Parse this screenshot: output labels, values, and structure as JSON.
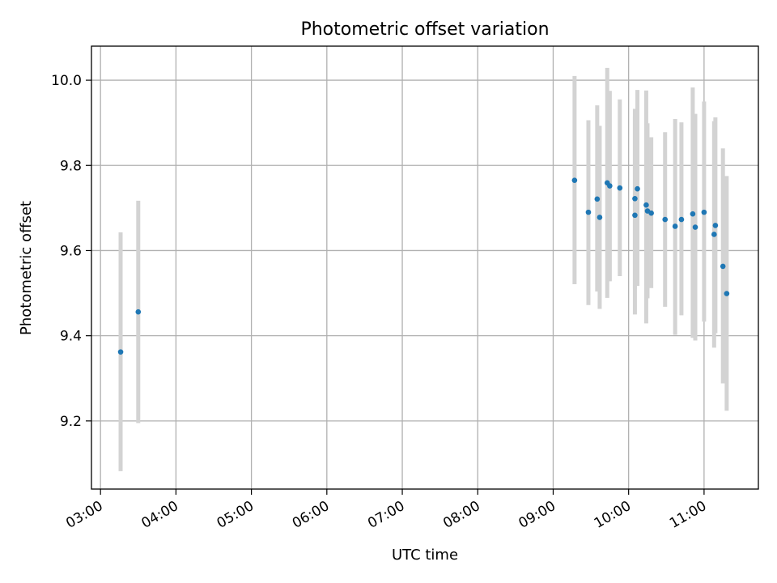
{
  "chart_data": {
    "type": "scatter",
    "title": "Photometric offset variation",
    "xlabel": "UTC time",
    "ylabel": "Photometric offset",
    "x_unit": "hours UTC",
    "xlim": [
      2.88,
      11.72
    ],
    "ylim": [
      9.04,
      10.08
    ],
    "x_ticks": [
      3,
      4,
      5,
      6,
      7,
      8,
      9,
      10,
      11
    ],
    "x_tick_labels": [
      "03:00",
      "04:00",
      "05:00",
      "06:00",
      "07:00",
      "08:00",
      "09:00",
      "10:00",
      "11:00"
    ],
    "y_ticks": [
      9.2,
      9.4,
      9.6,
      9.8,
      10.0
    ],
    "y_tick_labels": [
      "9.2",
      "9.4",
      "9.6",
      "9.8",
      "10.0"
    ],
    "grid": true,
    "legend": "none",
    "colors": {
      "points": "#1f77b4",
      "errorbars": "#d3d3d3",
      "grid": "#b0b0b0"
    },
    "points": [
      {
        "time": "03:16",
        "y": 9.362,
        "y_low": 9.082,
        "y_high": 9.643
      },
      {
        "time": "03:30",
        "y": 9.456,
        "y_low": 9.195,
        "y_high": 9.717
      },
      {
        "time": "09:17",
        "y": 9.765,
        "y_low": 9.521,
        "y_high": 10.01
      },
      {
        "time": "09:28",
        "y": 9.69,
        "y_low": 9.472,
        "y_high": 9.906
      },
      {
        "time": "09:35",
        "y": 9.721,
        "y_low": 9.504,
        "y_high": 9.941
      },
      {
        "time": "09:37",
        "y": 9.678,
        "y_low": 9.463,
        "y_high": 9.893
      },
      {
        "time": "09:43",
        "y": 9.759,
        "y_low": 9.489,
        "y_high": 10.029
      },
      {
        "time": "09:45",
        "y": 9.752,
        "y_low": 9.528,
        "y_high": 9.975
      },
      {
        "time": "09:53",
        "y": 9.747,
        "y_low": 9.54,
        "y_high": 9.955
      },
      {
        "time": "10:05",
        "y": 9.722,
        "y_low": 9.51,
        "y_high": 9.933
      },
      {
        "time": "10:05",
        "y": 9.683,
        "y_low": 9.45,
        "y_high": 9.915
      },
      {
        "time": "10:07",
        "y": 9.745,
        "y_low": 9.517,
        "y_high": 9.977
      },
      {
        "time": "10:14",
        "y": 9.707,
        "y_low": 9.429,
        "y_high": 9.976
      },
      {
        "time": "10:15",
        "y": 9.693,
        "y_low": 9.488,
        "y_high": 9.899
      },
      {
        "time": "10:18",
        "y": 9.688,
        "y_low": 9.512,
        "y_high": 9.866
      },
      {
        "time": "10:29",
        "y": 9.673,
        "y_low": 9.468,
        "y_high": 9.878
      },
      {
        "time": "10:37",
        "y": 9.657,
        "y_low": 9.402,
        "y_high": 9.909
      },
      {
        "time": "10:42",
        "y": 9.673,
        "y_low": 9.448,
        "y_high": 9.901
      },
      {
        "time": "10:51",
        "y": 9.686,
        "y_low": 9.395,
        "y_high": 9.983
      },
      {
        "time": "10:53",
        "y": 9.655,
        "y_low": 9.389,
        "y_high": 9.921
      },
      {
        "time": "11:00",
        "y": 9.69,
        "y_low": 9.433,
        "y_high": 9.95
      },
      {
        "time": "11:09",
        "y": 9.659,
        "y_low": 9.406,
        "y_high": 9.913
      },
      {
        "time": "11:08",
        "y": 9.638,
        "y_low": 9.372,
        "y_high": 9.904
      },
      {
        "time": "11:15",
        "y": 9.563,
        "y_low": 9.288,
        "y_high": 9.84
      },
      {
        "time": "11:18",
        "y": 9.499,
        "y_low": 9.224,
        "y_high": 9.775
      }
    ]
  }
}
